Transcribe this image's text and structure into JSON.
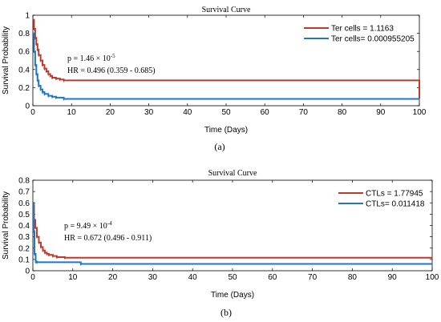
{
  "chart_data": [
    {
      "type": "line",
      "title": "Survival Curve",
      "xlabel": "Time (Days)",
      "ylabel": "Survival Probability",
      "xlim": [
        0,
        100
      ],
      "ylim": [
        0,
        1
      ],
      "xticks": [
        0,
        10,
        20,
        30,
        40,
        50,
        60,
        70,
        80,
        90,
        100
      ],
      "yticks": [
        0,
        0.2,
        0.4,
        0.6,
        0.8,
        1
      ],
      "ytick_labels": [
        "0",
        "0.2",
        "0.4",
        "0.6",
        "0.8",
        "1"
      ],
      "legend_position": "top-right",
      "annotation": {
        "p_prefix": "p = 1.46",
        "p_times": "× 10",
        "p_exp": "-5",
        "hr": "HR = 0.496 (0.359 - 0.685)"
      },
      "sublabel": "(a)",
      "series": [
        {
          "name": "Ter cells = 1.1163",
          "color": "#c0392b",
          "x": [
            0,
            0.3,
            0.6,
            0.9,
            1.2,
            1.5,
            2,
            2.5,
            3,
            3.5,
            4,
            4.5,
            5,
            6,
            7,
            8,
            100
          ],
          "y": [
            0.95,
            0.85,
            0.75,
            0.68,
            0.62,
            0.56,
            0.5,
            0.45,
            0.41,
            0.38,
            0.35,
            0.33,
            0.31,
            0.3,
            0.29,
            0.28,
            0.28
          ],
          "end_drop_y": 0.08
        },
        {
          "name": "Ter cells= 0.000955205",
          "color": "#1f77c4",
          "x": [
            0,
            0.3,
            0.6,
            0.9,
            1.2,
            1.5,
            2,
            2.5,
            3,
            4,
            5,
            6,
            8,
            100
          ],
          "y": [
            0.8,
            0.6,
            0.45,
            0.35,
            0.28,
            0.22,
            0.18,
            0.15,
            0.13,
            0.11,
            0.1,
            0.09,
            0.075,
            0.075
          ]
        }
      ]
    },
    {
      "type": "line",
      "title": "Survival Curve",
      "xlabel": "Time (Days)",
      "ylabel": "Survival Probability",
      "xlim": [
        0,
        100
      ],
      "ylim": [
        0,
        0.8
      ],
      "xticks": [
        0,
        10,
        20,
        30,
        40,
        50,
        60,
        70,
        80,
        90,
        100
      ],
      "yticks": [
        0,
        0.1,
        0.2,
        0.3,
        0.4,
        0.5,
        0.6,
        0.7,
        0.8
      ],
      "ytick_labels": [
        "0",
        "0.1",
        "0.2",
        "0.3",
        "0.4",
        "0.5",
        "0.6",
        "0.7",
        "0.8"
      ],
      "legend_position": "top-right",
      "annotation": {
        "p_prefix": "p = 9.49",
        "p_times": "× 10",
        "p_exp": "-4",
        "hr": "HR = 0.672 (0.496 - 0.911)"
      },
      "sublabel": "(b)",
      "series": [
        {
          "name": "CTLs = 1.77945",
          "color": "#c0392b",
          "x": [
            0,
            0.3,
            0.6,
            1,
            1.5,
            2,
            2.5,
            3,
            3.5,
            4,
            5,
            6,
            8,
            100
          ],
          "y": [
            0.58,
            0.45,
            0.38,
            0.3,
            0.25,
            0.21,
            0.18,
            0.16,
            0.15,
            0.14,
            0.13,
            0.12,
            0.115,
            0.115
          ]
        },
        {
          "name": "CTLs= 0.011418",
          "color": "#1f77c4",
          "x": [
            0,
            0.2,
            0.4,
            0.7,
            1,
            12,
            100
          ],
          "y": [
            0.6,
            0.35,
            0.15,
            0.08,
            0.075,
            0.06,
            0.06
          ]
        }
      ]
    }
  ]
}
